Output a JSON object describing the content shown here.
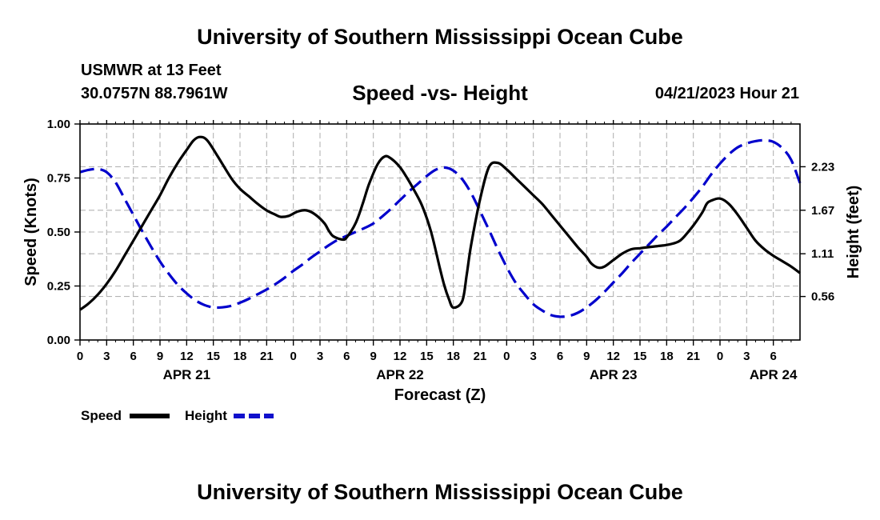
{
  "header": {
    "title": "University of Southern Mississippi Ocean Cube",
    "station": "USMWR at 13 Feet",
    "location": "30.0757N  88.7961W",
    "subtitle": "Speed -vs- Height",
    "datetime": "04/21/2023 Hour 21"
  },
  "footer": {
    "title": "University of Southern Mississippi Ocean Cube"
  },
  "chart_data": {
    "type": "line",
    "title": "Speed -vs- Height",
    "xlabel": "Forecast (Z)",
    "ylabel_left": "Speed (Knots)",
    "ylabel_right": "Height (feet)",
    "x_range_hours": [
      0,
      81
    ],
    "x_tick_step_hours": 3,
    "x_tick_labels": [
      "0",
      "3",
      "6",
      "9",
      "12",
      "15",
      "18",
      "21",
      "0",
      "3",
      "6",
      "9",
      "12",
      "15",
      "18",
      "21",
      "0",
      "3",
      "6",
      "9",
      "12",
      "15",
      "18",
      "21",
      "0",
      "3",
      "6"
    ],
    "date_labels": [
      {
        "label": "APR 21",
        "hour": 12
      },
      {
        "label": "APR 22",
        "hour": 36
      },
      {
        "label": "APR 23",
        "hour": 60
      },
      {
        "label": "APR 24",
        "hour": 78
      }
    ],
    "ylim_left": [
      0,
      1
    ],
    "y_ticks_left": [
      0,
      0.25,
      0.5,
      0.75,
      1.0
    ],
    "y_tick_labels_left": [
      "0.00",
      "0.25",
      "0.50",
      "0.75",
      "1.00"
    ],
    "ylim_right": [
      0,
      2.78
    ],
    "y_ticks_right": [
      0.56,
      1.11,
      1.67,
      2.23
    ],
    "y_tick_labels_right": [
      "0.56",
      "1.11",
      "1.67",
      "2.23"
    ],
    "grid": true,
    "legend_position": "bottom-left",
    "series": [
      {
        "name": "Speed",
        "axis": "left",
        "color": "#000000",
        "style": "solid",
        "x": [
          0,
          1,
          2,
          3,
          4,
          5,
          6,
          7,
          8,
          9,
          10,
          11,
          12,
          12.8,
          13.5,
          14.3,
          15.5,
          17,
          18,
          19,
          20,
          21,
          22,
          22.6,
          23.5,
          24.5,
          25.5,
          26.5,
          27.5,
          28,
          28.5,
          29.5,
          30,
          31,
          31.8,
          32.5,
          33.5,
          34.3,
          35,
          36,
          36.8,
          37.5,
          38.5,
          39.5,
          40.5,
          41,
          41.5,
          42,
          43,
          43.5,
          44,
          45,
          46,
          47,
          48,
          49,
          50,
          51,
          52,
          53,
          54,
          55,
          56,
          57,
          57.5,
          58.3,
          59,
          60,
          61,
          62,
          63,
          64,
          65,
          66,
          67,
          67.5,
          68,
          69,
          70,
          70.5,
          71,
          72,
          73,
          74,
          75,
          76,
          77,
          78,
          79,
          80,
          81
        ],
        "values": [
          0.14,
          0.17,
          0.21,
          0.26,
          0.32,
          0.39,
          0.46,
          0.53,
          0.6,
          0.67,
          0.75,
          0.82,
          0.88,
          0.925,
          0.94,
          0.925,
          0.85,
          0.75,
          0.7,
          0.665,
          0.63,
          0.6,
          0.58,
          0.57,
          0.575,
          0.595,
          0.6,
          0.58,
          0.54,
          0.505,
          0.48,
          0.465,
          0.475,
          0.54,
          0.63,
          0.72,
          0.815,
          0.85,
          0.84,
          0.8,
          0.75,
          0.7,
          0.62,
          0.5,
          0.33,
          0.25,
          0.19,
          0.15,
          0.18,
          0.3,
          0.44,
          0.65,
          0.8,
          0.82,
          0.79,
          0.75,
          0.71,
          0.67,
          0.63,
          0.58,
          0.53,
          0.48,
          0.43,
          0.385,
          0.355,
          0.335,
          0.34,
          0.37,
          0.4,
          0.42,
          0.425,
          0.43,
          0.435,
          0.44,
          0.45,
          0.46,
          0.48,
          0.53,
          0.59,
          0.63,
          0.645,
          0.655,
          0.63,
          0.58,
          0.52,
          0.46,
          0.42,
          0.39,
          0.365,
          0.34,
          0.31
        ]
      },
      {
        "name": "Height",
        "axis": "right",
        "color": "#0000cc",
        "style": "dashed",
        "x": [
          0,
          1,
          2,
          3,
          4,
          5,
          6,
          7,
          8,
          9,
          10,
          11,
          12,
          13,
          14,
          15,
          16,
          17,
          18,
          19,
          20,
          21,
          22,
          23,
          24,
          25,
          26,
          27,
          28,
          29,
          30,
          31,
          32,
          33,
          34,
          35,
          36,
          37,
          38,
          39,
          40,
          41,
          42,
          43,
          44,
          45,
          46,
          47,
          48,
          49,
          50,
          51,
          52,
          53,
          54,
          55,
          56,
          57,
          58,
          59,
          60,
          61,
          62,
          63,
          64,
          65,
          66,
          67,
          68,
          69,
          70,
          71,
          72,
          73,
          74,
          75,
          76,
          77,
          78,
          79,
          80,
          81
        ],
        "values": [
          2.16,
          2.19,
          2.2,
          2.16,
          2.03,
          1.82,
          1.61,
          1.4,
          1.2,
          1.01,
          0.85,
          0.71,
          0.6,
          0.51,
          0.45,
          0.42,
          0.42,
          0.44,
          0.48,
          0.53,
          0.59,
          0.65,
          0.72,
          0.8,
          0.89,
          0.97,
          1.06,
          1.14,
          1.22,
          1.29,
          1.34,
          1.39,
          1.44,
          1.5,
          1.59,
          1.69,
          1.8,
          1.91,
          2.01,
          2.11,
          2.19,
          2.22,
          2.18,
          2.07,
          1.89,
          1.66,
          1.42,
          1.17,
          0.94,
          0.74,
          0.59,
          0.46,
          0.38,
          0.32,
          0.3,
          0.31,
          0.35,
          0.42,
          0.51,
          0.62,
          0.74,
          0.86,
          0.99,
          1.11,
          1.23,
          1.35,
          1.46,
          1.58,
          1.7,
          1.83,
          1.97,
          2.13,
          2.27,
          2.39,
          2.48,
          2.53,
          2.56,
          2.57,
          2.55,
          2.47,
          2.32,
          2.02
        ]
      }
    ]
  }
}
